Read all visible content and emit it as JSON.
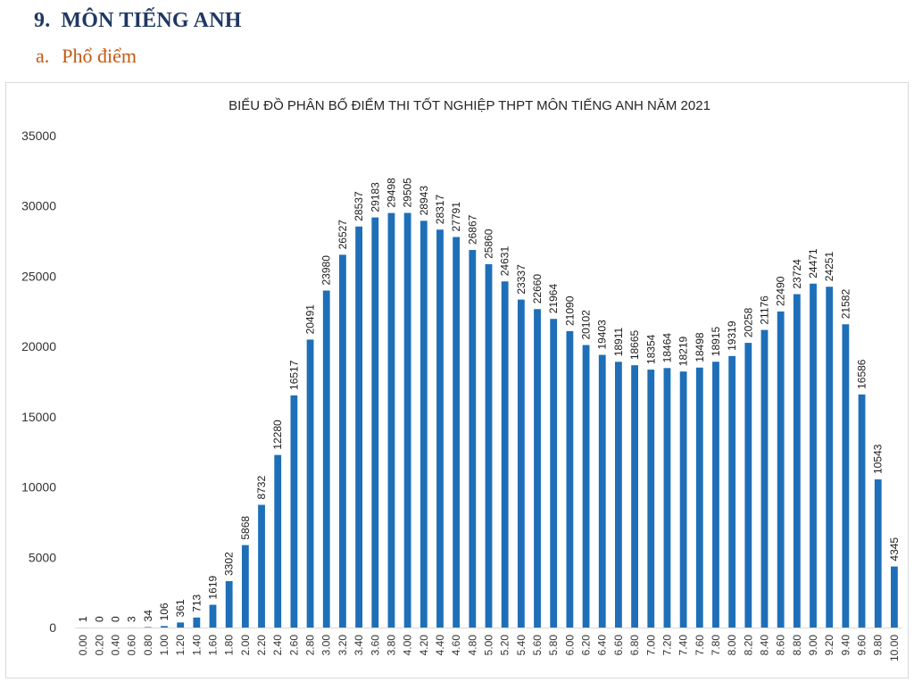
{
  "header": {
    "section_number": "9.",
    "section_title": "MÔN TIẾNG ANH",
    "subsection_letter": "a.",
    "subsection_title": "Phổ điểm"
  },
  "colors": {
    "bar": "#1f6fb8",
    "section_title": "#1f3864",
    "subsection_title": "#c55a11"
  },
  "chart_data": {
    "type": "bar",
    "title": "BIỂU ĐỒ PHÂN BỐ ĐIỂM THI TỐT NGHIỆP THPT MÔN TIẾNG ANH NĂM 2021",
    "xlabel": "",
    "ylabel": "",
    "ylim": [
      0,
      35000
    ],
    "yticks": [
      0,
      5000,
      10000,
      15000,
      20000,
      25000,
      30000,
      35000
    ],
    "grid": false,
    "categories": [
      "0.00",
      "0.20",
      "0.40",
      "0.60",
      "0.80",
      "1.00",
      "1.20",
      "1.40",
      "1.60",
      "1.80",
      "2.00",
      "2.20",
      "2.40",
      "2.60",
      "2.80",
      "3.00",
      "3.20",
      "3.40",
      "3.60",
      "3.80",
      "4.00",
      "4.20",
      "4.40",
      "4.60",
      "4.80",
      "5.00",
      "5.20",
      "5.40",
      "5.60",
      "5.80",
      "6.00",
      "6.20",
      "6.40",
      "6.60",
      "6.80",
      "7.00",
      "7.20",
      "7.40",
      "7.60",
      "7.80",
      "8.00",
      "8.20",
      "8.40",
      "8.60",
      "8.80",
      "9.00",
      "9.20",
      "9.40",
      "9.60",
      "9.80",
      "10.00"
    ],
    "values": [
      1,
      0,
      0,
      3,
      34,
      106,
      361,
      713,
      1619,
      3302,
      5868,
      8732,
      12280,
      16517,
      20491,
      23980,
      26527,
      28537,
      29183,
      29498,
      29505,
      28943,
      28317,
      27791,
      26867,
      25860,
      24631,
      23337,
      22660,
      21964,
      21090,
      20102,
      19403,
      18911,
      18665,
      18354,
      18464,
      18219,
      18498,
      18915,
      19319,
      20258,
      21176,
      22490,
      23724,
      24471,
      24251,
      21582,
      16586,
      10543,
      4345
    ]
  }
}
